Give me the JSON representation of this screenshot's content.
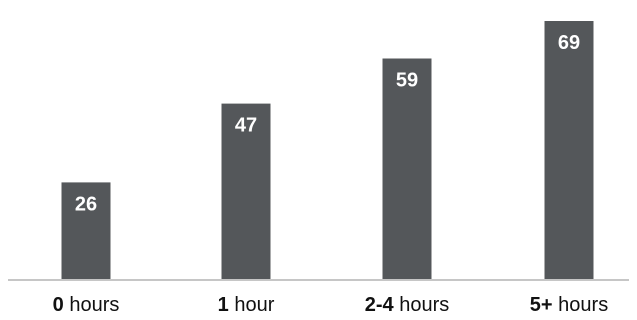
{
  "chart_data": {
    "type": "bar",
    "categories": [
      "0 hours",
      "1 hour",
      "2-4 hours",
      "5+ hours"
    ],
    "category_labels": [
      {
        "bold": "0",
        "rest": " hours"
      },
      {
        "bold": "1",
        "rest": " hour"
      },
      {
        "bold": "2-4",
        "rest": " hours"
      },
      {
        "bold": "5+",
        "rest": " hours"
      }
    ],
    "values": [
      26,
      47,
      59,
      69
    ],
    "data_labels": [
      "26",
      "47",
      "59",
      "69"
    ],
    "title": "",
    "xlabel": "",
    "ylabel": "",
    "ylim": [
      0,
      73
    ],
    "grid": false,
    "legend": "none",
    "colors": {
      "bar": "#54575a",
      "baseline": "#c6c6c6",
      "data_label": "#ffffff",
      "axis_text": "#111111"
    }
  }
}
